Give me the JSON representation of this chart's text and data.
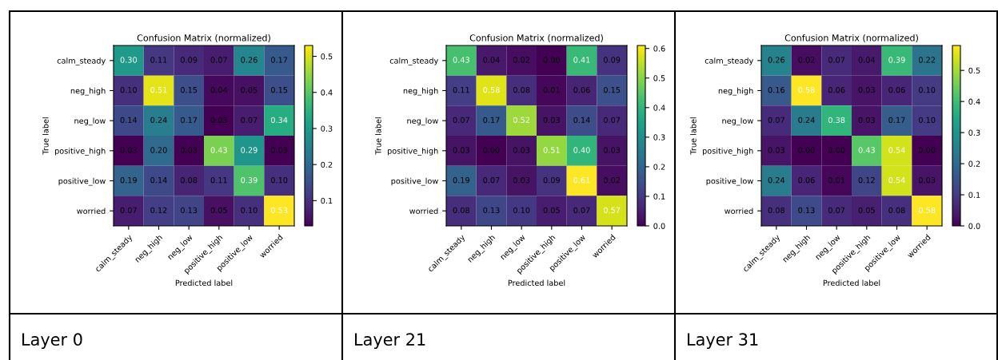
{
  "chart_data": [
    {
      "type": "heatmap",
      "title": "Confusion Matrix (normalized)",
      "xlabel": "Predicted label",
      "ylabel": "True label",
      "categories": [
        "calm_steady",
        "neg_high",
        "neg_low",
        "positive_high",
        "positive_low",
        "worried"
      ],
      "y_categories": [
        "calm_steady",
        "neg_high",
        "neg_low",
        "positive_high",
        "positive_low",
        "worried"
      ],
      "cells": [
        [
          0.3,
          0.11,
          0.09,
          0.07,
          0.26,
          0.17
        ],
        [
          0.1,
          0.51,
          0.15,
          0.04,
          0.05,
          0.15
        ],
        [
          0.14,
          0.24,
          0.17,
          0.03,
          0.07,
          0.34
        ],
        [
          0.03,
          0.2,
          0.03,
          0.43,
          0.29,
          0.03
        ],
        [
          0.19,
          0.14,
          0.08,
          0.11,
          0.39,
          0.1
        ],
        [
          0.07,
          0.12,
          0.13,
          0.05,
          0.1,
          0.53
        ]
      ],
      "cell_labels": [
        [
          "0.30",
          "0.11",
          "0.09",
          "0.07",
          "0.26",
          "0.17"
        ],
        [
          "0.10",
          "0.51",
          "0.15",
          "0.04",
          "0.05",
          "0.15"
        ],
        [
          "0.14",
          "0.24",
          "0.17",
          "0.03",
          "0.07",
          "0.34"
        ],
        [
          "0.03",
          "0.20",
          "0.03",
          "0.43",
          "0.29",
          "0.03"
        ],
        [
          "0.19",
          "0.14",
          "0.08",
          "0.11",
          "0.39",
          "0.10"
        ],
        [
          "0.07",
          "0.12",
          "0.13",
          "0.05",
          "0.10",
          "0.53"
        ]
      ],
      "clim": [
        0.03,
        0.53
      ],
      "cticks": [
        0.1,
        0.2,
        0.3,
        0.4,
        0.5
      ],
      "annotations": [
        "Layer 0"
      ]
    },
    {
      "type": "heatmap",
      "title": "Confusion Matrix (normalized)",
      "xlabel": "Predicted label",
      "ylabel": "True label",
      "categories": [
        "calm_steady",
        "neg_high",
        "neg_low",
        "positive_high",
        "positive_low",
        "worried"
      ],
      "y_categories": [
        "calm_steady",
        "neg_high",
        "neg_low",
        "positive_high",
        "positive_low",
        "worried"
      ],
      "cells": [
        [
          0.43,
          0.04,
          0.02,
          0.0,
          0.41,
          0.09
        ],
        [
          0.11,
          0.58,
          0.08,
          0.01,
          0.06,
          0.15
        ],
        [
          0.07,
          0.17,
          0.52,
          0.03,
          0.14,
          0.07
        ],
        [
          0.03,
          0.0,
          0.03,
          0.51,
          0.4,
          0.03
        ],
        [
          0.19,
          0.07,
          0.03,
          0.09,
          0.61,
          0.02
        ],
        [
          0.08,
          0.13,
          0.1,
          0.05,
          0.07,
          0.57
        ]
      ],
      "cell_labels": [
        [
          "0.43",
          "0.04",
          "0.02",
          "0.00",
          "0.41",
          "0.09"
        ],
        [
          "0.11",
          "0.58",
          "0.08",
          "0.01",
          "0.06",
          "0.15"
        ],
        [
          "0.07",
          "0.17",
          "0.52",
          "0.03",
          "0.14",
          "0.07"
        ],
        [
          "0.03",
          "0.00",
          "0.03",
          "0.51",
          "0.40",
          "0.03"
        ],
        [
          "0.19",
          "0.07",
          "0.03",
          "0.09",
          "0.61",
          "0.02"
        ],
        [
          "0.08",
          "0.13",
          "0.10",
          "0.05",
          "0.07",
          "0.57"
        ]
      ],
      "clim": [
        0.0,
        0.61
      ],
      "cticks": [
        {
          "value": 0,
          "label": "0.0"
        },
        0.1,
        0.2,
        0.3,
        0.4,
        0.5,
        0.6
      ],
      "annotations": [
        "Layer 21"
      ]
    },
    {
      "type": "heatmap",
      "title": "Confusion Matrix (normalized)",
      "xlabel": "Predicted label",
      "ylabel": "True label",
      "categories": [
        "calm_steady",
        "neg_high",
        "neg_low",
        "positive_high",
        "positive_low",
        "worried"
      ],
      "y_categories": [
        "calm_steady",
        "neg_high",
        "neg_low",
        "positive_high",
        "positive_low",
        "worried"
      ],
      "cells": [
        [
          0.26,
          0.02,
          0.07,
          0.04,
          0.39,
          0.22
        ],
        [
          0.16,
          0.58,
          0.06,
          0.03,
          0.06,
          0.1
        ],
        [
          0.07,
          0.24,
          0.38,
          0.03,
          0.17,
          0.1
        ],
        [
          0.03,
          0.0,
          0.0,
          0.43,
          0.54,
          0.0
        ],
        [
          0.24,
          0.06,
          0.01,
          0.12,
          0.54,
          0.03
        ],
        [
          0.08,
          0.13,
          0.07,
          0.05,
          0.08,
          0.58
        ]
      ],
      "cell_labels": [
        [
          "0.26",
          "0.02",
          "0.07",
          "0.04",
          "0.39",
          "0.22"
        ],
        [
          "0.16",
          "0.58",
          "0.06",
          "0.03",
          "0.06",
          "0.10"
        ],
        [
          "0.07",
          "0.24",
          "0.38",
          "0.03",
          "0.17",
          "0.10"
        ],
        [
          "0.03",
          "0.00",
          "0.00",
          "0.43",
          "0.54",
          "0.00"
        ],
        [
          "0.24",
          "0.06",
          "0.01",
          "0.12",
          "0.54",
          "0.03"
        ],
        [
          "0.08",
          "0.13",
          "0.07",
          "0.05",
          "0.08",
          "0.58"
        ]
      ],
      "clim": [
        0.0,
        0.58
      ],
      "cticks": [
        {
          "value": 0,
          "label": "0.0"
        },
        0.1,
        0.2,
        0.3,
        0.4,
        0.5
      ],
      "annotations": [
        "Layer 31"
      ]
    }
  ]
}
